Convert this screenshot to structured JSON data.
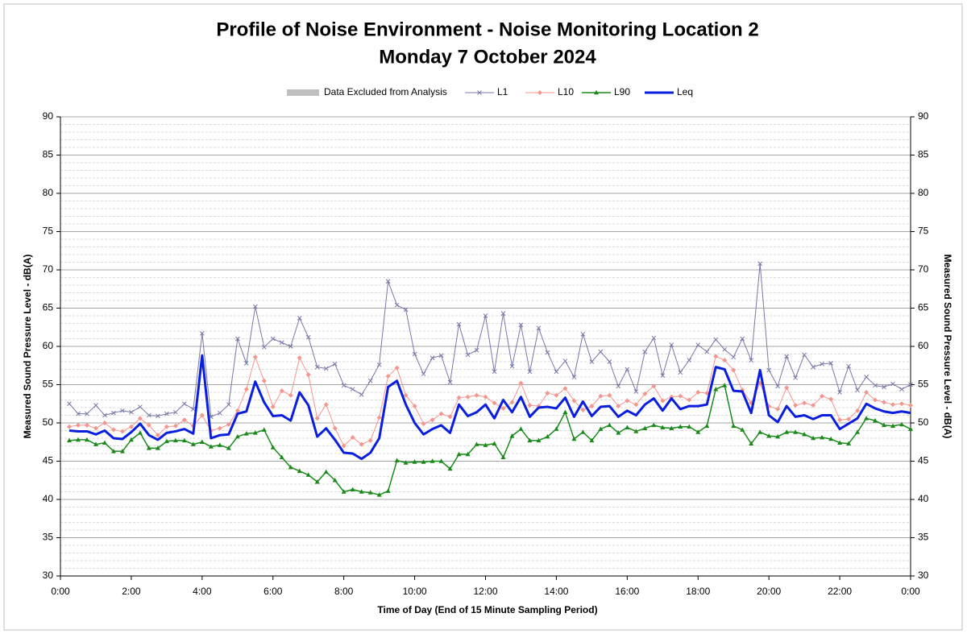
{
  "chart_data": {
    "type": "line",
    "title": "Profile of Noise Environment - Noise Monitoring Location 2",
    "subtitle": "Monday 7 October 2024",
    "xlabel": "Time of Day (End of 15 Minute Sampling Period)",
    "ylabel": "Measured Sound Pressure Level - dB(A)",
    "y2label": "Measured Sound Pressure Level - dB(A)",
    "excluded_legend": {
      "name": "Data Excluded from Analysis",
      "color": "#bfbfbf"
    },
    "xlim": [
      0,
      24
    ],
    "xticks": [
      {
        "value": 0,
        "label": "0:00"
      },
      {
        "value": 2,
        "label": "2:00"
      },
      {
        "value": 4,
        "label": "4:00"
      },
      {
        "value": 6,
        "label": "6:00"
      },
      {
        "value": 8,
        "label": "8:00"
      },
      {
        "value": 10,
        "label": "10:00"
      },
      {
        "value": 12,
        "label": "12:00"
      },
      {
        "value": 14,
        "label": "14:00"
      },
      {
        "value": 16,
        "label": "16:00"
      },
      {
        "value": 18,
        "label": "18:00"
      },
      {
        "value": 20,
        "label": "20:00"
      },
      {
        "value": 22,
        "label": "22:00"
      },
      {
        "value": 24,
        "label": "0:00"
      }
    ],
    "ylim": [
      30,
      90
    ],
    "yticks": [
      30,
      35,
      40,
      45,
      50,
      55,
      60,
      65,
      70,
      75,
      80,
      85,
      90
    ],
    "y2lim": [
      30,
      90
    ],
    "y2ticks": [
      30,
      35,
      40,
      45,
      50,
      55,
      60,
      65,
      70,
      75,
      80,
      85,
      90
    ],
    "grid": true,
    "minor_grid": true,
    "x": [
      0.25,
      0.5,
      0.75,
      1,
      1.25,
      1.5,
      1.75,
      2,
      2.25,
      2.5,
      2.75,
      3,
      3.25,
      3.5,
      3.75,
      4,
      4.25,
      4.5,
      4.75,
      5,
      5.25,
      5.5,
      5.75,
      6,
      6.25,
      6.5,
      6.75,
      7,
      7.25,
      7.5,
      7.75,
      8,
      8.25,
      8.5,
      8.75,
      9,
      9.25,
      9.5,
      9.75,
      10,
      10.25,
      10.5,
      10.75,
      11,
      11.25,
      11.5,
      11.75,
      12,
      12.25,
      12.5,
      12.75,
      13,
      13.25,
      13.5,
      13.75,
      14,
      14.25,
      14.5,
      14.75,
      15,
      15.25,
      15.5,
      15.75,
      16,
      16.25,
      16.5,
      16.75,
      17,
      17.25,
      17.5,
      17.75,
      18,
      18.25,
      18.5,
      18.75,
      19,
      19.25,
      19.5,
      19.75,
      20,
      20.25,
      20.5,
      20.75,
      21,
      21.25,
      21.5,
      21.75,
      22,
      22.25,
      22.5,
      22.75,
      23,
      23.25,
      23.5,
      23.75,
      24
    ],
    "series": [
      {
        "name": "L1",
        "color": "#7878a8",
        "marker": "x",
        "line_width": 1,
        "values": [
          52.5,
          51.2,
          51.2,
          52.3,
          51.0,
          51.3,
          51.6,
          51.4,
          52.1,
          51.0,
          50.9,
          51.2,
          51.4,
          52.5,
          51.8,
          61.7,
          50.8,
          51.3,
          52.4,
          61.0,
          57.8,
          65.2,
          59.9,
          61.0,
          60.5,
          60.0,
          63.7,
          61.2,
          57.3,
          57.1,
          57.7,
          54.9,
          54.4,
          53.7,
          55.5,
          57.6,
          68.5,
          65.4,
          64.8,
          59.0,
          56.4,
          58.5,
          58.8,
          55.3,
          62.9,
          58.9,
          59.5,
          64.0,
          56.7,
          64.3,
          57.4,
          62.8,
          56.7,
          62.4,
          59.2,
          56.7,
          58.1,
          56.0,
          61.6,
          58.0,
          59.3,
          58.0,
          54.8,
          57.0,
          54.1,
          59.3,
          61.1,
          56.2,
          60.2,
          56.6,
          58.2,
          60.2,
          59.3,
          60.9,
          59.6,
          58.6,
          61.0,
          58.2,
          70.8,
          56.9,
          54.8,
          58.7,
          55.9,
          58.9,
          57.3,
          57.7,
          57.8,
          54.0,
          57.4,
          54.3,
          56.0,
          54.9,
          54.7,
          55.1,
          54.4,
          55.0
        ]
      },
      {
        "name": "L10",
        "color": "#f4958e",
        "marker": "diamond",
        "line_width": 1,
        "values": [
          49.5,
          49.7,
          49.7,
          49.3,
          50.0,
          49.1,
          48.9,
          49.5,
          50.6,
          49.7,
          48.4,
          49.5,
          49.6,
          50.4,
          49.6,
          51.0,
          49.0,
          49.3,
          49.8,
          51.6,
          54.4,
          58.6,
          55.5,
          52.1,
          54.2,
          53.6,
          58.5,
          56.3,
          50.6,
          52.4,
          49.3,
          47.0,
          48.1,
          47.2,
          47.7,
          50.7,
          56.1,
          57.2,
          53.6,
          52.2,
          49.9,
          50.4,
          51.2,
          50.8,
          53.3,
          53.4,
          53.6,
          53.4,
          52.6,
          51.9,
          52.7,
          55.2,
          52.3,
          52.2,
          53.9,
          53.6,
          54.5,
          52.9,
          51.7,
          52.2,
          53.5,
          53.6,
          52.2,
          52.9,
          52.4,
          53.8,
          54.8,
          52.9,
          53.4,
          53.5,
          53.0,
          54.0,
          53.9,
          58.7,
          58.2,
          56.9,
          54.3,
          52.6,
          55.2,
          52.2,
          51.8,
          54.6,
          52.3,
          52.6,
          52.3,
          53.5,
          53.1,
          50.4,
          50.5,
          51.6,
          54.0,
          53.0,
          52.7,
          52.4,
          52.5,
          52.3
        ]
      },
      {
        "name": "L90",
        "color": "#1a8a1a",
        "marker": "triangle",
        "line_width": 1.5,
        "values": [
          47.7,
          47.8,
          47.8,
          47.2,
          47.4,
          46.3,
          46.3,
          47.8,
          48.7,
          46.7,
          46.7,
          47.6,
          47.7,
          47.7,
          47.2,
          47.5,
          46.9,
          47.1,
          46.7,
          48.2,
          48.6,
          48.7,
          49.1,
          46.8,
          45.5,
          44.2,
          43.7,
          43.2,
          42.3,
          43.6,
          42.5,
          41.0,
          41.3,
          41.0,
          40.9,
          40.6,
          41.1,
          45.1,
          44.8,
          44.9,
          44.9,
          45.0,
          45.0,
          44.0,
          45.9,
          45.9,
          47.2,
          47.1,
          47.3,
          45.5,
          48.3,
          49.2,
          47.7,
          47.7,
          48.2,
          49.2,
          51.4,
          47.9,
          48.8,
          47.7,
          49.2,
          49.7,
          48.7,
          49.4,
          48.9,
          49.3,
          49.7,
          49.4,
          49.3,
          49.5,
          49.5,
          48.8,
          49.6,
          54.4,
          54.9,
          49.6,
          49.1,
          47.3,
          48.8,
          48.3,
          48.2,
          48.8,
          48.8,
          48.5,
          48.0,
          48.1,
          47.9,
          47.4,
          47.3,
          48.8,
          50.6,
          50.3,
          49.7,
          49.6,
          49.8,
          49.2
        ]
      },
      {
        "name": "Leq",
        "color": "#0a1ee0",
        "marker": "none",
        "line_width": 3,
        "values": [
          49.0,
          48.9,
          48.9,
          48.5,
          49.0,
          48.0,
          47.9,
          48.8,
          49.9,
          48.4,
          47.8,
          48.7,
          48.9,
          49.2,
          48.6,
          58.8,
          48.0,
          48.4,
          48.5,
          51.2,
          51.5,
          55.4,
          52.7,
          50.9,
          51.0,
          50.3,
          54.0,
          52.3,
          48.2,
          49.3,
          47.8,
          46.1,
          46.0,
          45.3,
          46.1,
          48.0,
          54.7,
          55.5,
          52.4,
          50.0,
          48.5,
          49.2,
          49.7,
          48.7,
          52.4,
          50.9,
          51.4,
          52.4,
          50.6,
          53.0,
          51.4,
          53.4,
          50.8,
          52.0,
          52.1,
          51.9,
          53.3,
          50.8,
          52.8,
          50.9,
          52.1,
          52.2,
          50.8,
          51.6,
          51.0,
          52.4,
          53.2,
          51.6,
          53.2,
          51.8,
          52.2,
          52.2,
          52.4,
          57.3,
          57.0,
          54.2,
          54.1,
          51.3,
          56.9,
          51.0,
          50.1,
          52.2,
          50.8,
          51.0,
          50.5,
          51.0,
          51.0,
          49.2,
          49.9,
          50.6,
          52.5,
          51.9,
          51.5,
          51.3,
          51.5,
          51.3
        ]
      }
    ]
  }
}
